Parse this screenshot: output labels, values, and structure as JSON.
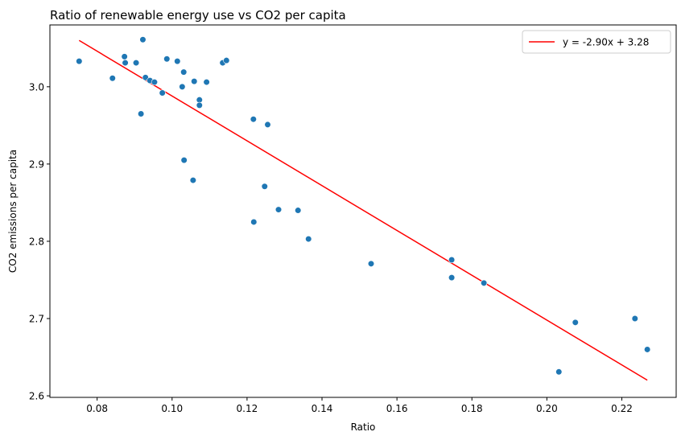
{
  "chart_data": {
    "type": "scatter",
    "title": "Ratio of renewable energy use vs CO2 per capita",
    "xlabel": "Ratio",
    "ylabel": "CO2 emissions per capita",
    "xlim": [
      0.0674,
      0.2345
    ],
    "ylim": [
      2.598,
      3.08
    ],
    "xticks": [
      0.08,
      0.1,
      0.12,
      0.14,
      0.16,
      0.18,
      0.2,
      0.22
    ],
    "xtick_labels": [
      "0.08",
      "0.10",
      "0.12",
      "0.14",
      "0.16",
      "0.18",
      "0.20",
      "0.22"
    ],
    "yticks": [
      2.6,
      2.7,
      2.8,
      2.9,
      3.0
    ],
    "ytick_labels": [
      "2.6",
      "2.7",
      "2.8",
      "2.9",
      "3.0"
    ],
    "grid": false,
    "legend_position": "top-right",
    "colors": {
      "points": "#1f77b4",
      "fit_line": "#ff0000"
    },
    "points": [
      {
        "x": 0.0752,
        "y": 3.033
      },
      {
        "x": 0.0841,
        "y": 3.011
      },
      {
        "x": 0.0873,
        "y": 3.039
      },
      {
        "x": 0.0875,
        "y": 3.031
      },
      {
        "x": 0.0904,
        "y": 3.031
      },
      {
        "x": 0.0917,
        "y": 2.965
      },
      {
        "x": 0.0922,
        "y": 3.061
      },
      {
        "x": 0.0929,
        "y": 3.012
      },
      {
        "x": 0.0941,
        "y": 3.008
      },
      {
        "x": 0.0953,
        "y": 3.006
      },
      {
        "x": 0.0974,
        "y": 2.992
      },
      {
        "x": 0.0986,
        "y": 3.036
      },
      {
        "x": 0.1014,
        "y": 3.033
      },
      {
        "x": 0.1027,
        "y": 3.0
      },
      {
        "x": 0.1031,
        "y": 3.019
      },
      {
        "x": 0.1032,
        "y": 2.905
      },
      {
        "x": 0.1056,
        "y": 2.879
      },
      {
        "x": 0.1059,
        "y": 3.007
      },
      {
        "x": 0.1073,
        "y": 2.983
      },
      {
        "x": 0.1073,
        "y": 2.976
      },
      {
        "x": 0.1092,
        "y": 3.006
      },
      {
        "x": 0.1135,
        "y": 3.031
      },
      {
        "x": 0.1145,
        "y": 3.034
      },
      {
        "x": 0.1217,
        "y": 2.958
      },
      {
        "x": 0.1218,
        "y": 2.825
      },
      {
        "x": 0.1247,
        "y": 2.871
      },
      {
        "x": 0.1255,
        "y": 2.951
      },
      {
        "x": 0.1284,
        "y": 2.841
      },
      {
        "x": 0.1336,
        "y": 2.84
      },
      {
        "x": 0.1364,
        "y": 2.803
      },
      {
        "x": 0.1531,
        "y": 2.771
      },
      {
        "x": 0.1746,
        "y": 2.776
      },
      {
        "x": 0.1746,
        "y": 2.753
      },
      {
        "x": 0.1832,
        "y": 2.746
      },
      {
        "x": 0.2032,
        "y": 2.631
      },
      {
        "x": 0.2076,
        "y": 2.695
      },
      {
        "x": 0.2235,
        "y": 2.7
      },
      {
        "x": 0.2268,
        "y": 2.66
      }
    ],
    "fit_line": {
      "label": "y = -2.90x + 3.28",
      "slope": -2.9,
      "intercept": 3.278,
      "x_range": [
        0.0752,
        0.2268
      ]
    }
  }
}
